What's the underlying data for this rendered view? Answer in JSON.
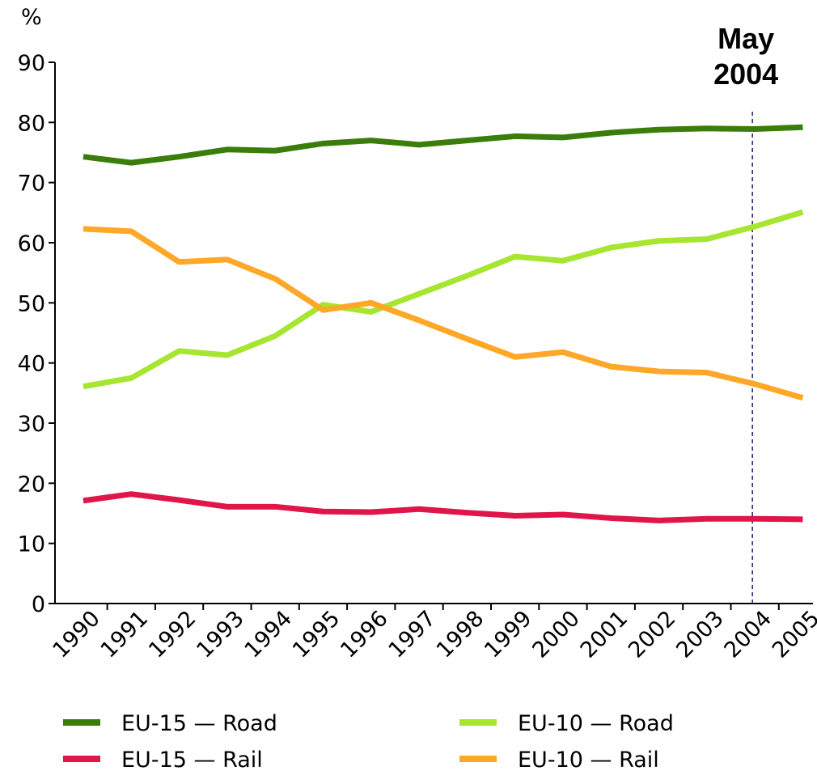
{
  "chart_data": {
    "type": "line",
    "y_label": "%",
    "categories": [
      "1990",
      "1991",
      "1992",
      "1993",
      "1994",
      "1995",
      "1996",
      "1997",
      "1998",
      "1999",
      "2000",
      "2001",
      "2002",
      "2003",
      "2004",
      "2005"
    ],
    "series": [
      {
        "name": "EU-15 — Road",
        "color": "#3a7d0a",
        "values": [
          74.3,
          73.3,
          74.3,
          75.5,
          75.3,
          76.5,
          77,
          76.3,
          77,
          77.7,
          77.5,
          78.3,
          78.8,
          79,
          78.9,
          79.2
        ]
      },
      {
        "name": "EU-15 — Rail",
        "color": "#e0154a",
        "values": [
          17.1,
          18.2,
          17.2,
          16.1,
          16.1,
          15.3,
          15.2,
          15.7,
          15.1,
          14.6,
          14.8,
          14.2,
          13.8,
          14.1,
          14.1,
          14
        ]
      },
      {
        "name": "EU-10 — Road",
        "color": "#a6e630",
        "values": [
          36.1,
          37.5,
          42,
          41.3,
          44.5,
          49.7,
          48.5,
          51.5,
          54.5,
          57.7,
          57,
          59.2,
          60.3,
          60.6,
          62.7,
          65.1
        ]
      },
      {
        "name": "EU-10 — Rail",
        "color": "#ffa726",
        "values": [
          62.3,
          61.9,
          56.8,
          57.2,
          54,
          48.8,
          50,
          47.1,
          44,
          41,
          41.8,
          39.4,
          38.6,
          38.4,
          36.5,
          34.2
        ]
      }
    ],
    "annotation": {
      "lines": [
        "May",
        "2004"
      ],
      "x": "2004"
    },
    "ylim": [
      0,
      90
    ],
    "yticks": [
      0,
      10,
      20,
      30,
      40,
      50,
      60,
      70,
      80,
      90
    ],
    "grid": false,
    "legend": "bottom"
  }
}
